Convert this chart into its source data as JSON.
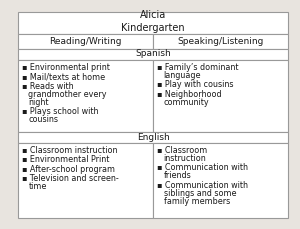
{
  "title_line1": "Alicia",
  "title_line2": "Kindergarten",
  "col1_header": "Reading/Writing",
  "col2_header": "Speaking/Listening",
  "spanish_label": "Spanish",
  "english_label": "English",
  "spanish_col1": [
    "Environmental print",
    "Mail/texts at home",
    "Reads with\ngrandmother every\nnight",
    "Plays school with\ncousins"
  ],
  "spanish_col2": [
    "Family’s dominant\nlanguage",
    "Play with cousins",
    "Neighborhood\ncommunity"
  ],
  "english_col1": [
    "Classroom instruction",
    "Environmental Print",
    "After-school program",
    "Television and screen-\ntime"
  ],
  "english_col2": [
    "Classroom\ninstruction",
    "Communication with\nfriends",
    "Communication with\nsiblings and some\nfamily members"
  ],
  "bg_color": "#e8e4df",
  "table_bg": "#ffffff",
  "border_color": "#999999",
  "text_color": "#1a1a1a",
  "title_fontsize": 7.0,
  "header_fontsize": 6.5,
  "cell_fontsize": 5.8,
  "bullet": "▪ "
}
